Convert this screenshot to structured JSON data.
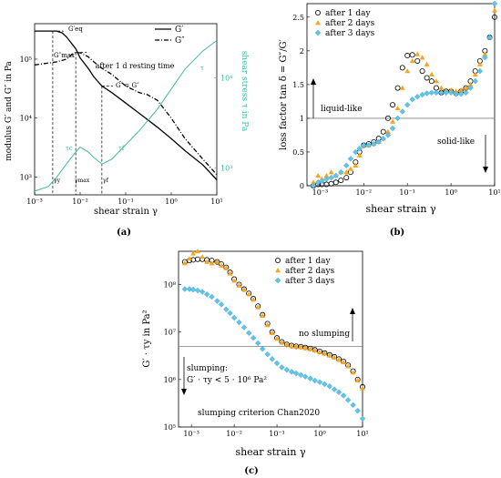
{
  "colors": {
    "teal": "#3fb8a3",
    "orange": "#f5a623",
    "lightblue": "#5fc3ea",
    "black": "#000000",
    "gray": "#7f7f7f"
  },
  "panels": {
    "a": {
      "caption": "(a)",
      "xlabel": "shear strain γ",
      "ylabel_left": "modulus G′ and G″ in Pa",
      "ylabel_right": "shear stress τ in Pa",
      "annotation_title": "after 1 d resting time",
      "legend": [
        {
          "label": "G′",
          "style": "solid"
        },
        {
          "label": "G″",
          "style": "dashdot"
        }
      ],
      "x_ticks": [
        "10⁻³",
        "10⁻²",
        "10⁻¹",
        "10⁰",
        "10¹"
      ],
      "y_ticks_left": [
        "10³",
        "10⁴",
        "10⁵"
      ],
      "y_ticks_right": [
        "10³",
        "10⁴"
      ],
      "annotations": {
        "g_eq": "G′eq",
        "g_max": "G″max",
        "cross": "G′ = G″",
        "tau": "τ",
        "tau_c": "τc",
        "tau_f": "τf",
        "gamma_y": "γy",
        "gamma_max": "γmax",
        "gamma_f": "γf"
      }
    },
    "b": {
      "caption": "(b)",
      "xlabel": "shear strain γ",
      "ylabel": "loss factor tan δ = G″/G′",
      "region_upper": "liquid-like",
      "region_lower": "solid-like",
      "x_ticks": [
        "10⁻³",
        "10⁻²",
        "10⁻¹",
        "10⁰",
        "10¹"
      ],
      "y_ticks": [
        "0",
        "0.5",
        "1",
        "1.5",
        "2",
        "2.5"
      ]
    },
    "c": {
      "caption": "(c)",
      "xlabel": "shear strain γ",
      "ylabel": "G′ · τy in Pa²",
      "region_upper": "no slumping",
      "slump_line1": "slumping:",
      "slump_line2": "G′ · τy < 5 · 10⁶ Pa²",
      "criterion": "slumping criterion Chan2020",
      "x_ticks": [
        "10⁻³",
        "10⁻²",
        "10⁻¹",
        "10⁰",
        "10¹"
      ],
      "y_ticks": [
        "10⁵",
        "10⁶",
        "10⁷",
        "10⁸"
      ]
    }
  },
  "chart_data": [
    {
      "type": "line",
      "xscale": "log",
      "yscale": "log",
      "xlim": [
        0.001,
        10
      ],
      "ylim": [
        500,
        400000
      ],
      "y2lim": [
        500,
        40000
      ],
      "grid": false,
      "legend_position": "top-right",
      "series": [
        {
          "name": "G′",
          "axis": "left",
          "x": [
            0.001,
            0.002,
            0.003,
            0.004,
            0.005,
            0.006,
            0.008,
            0.01,
            0.015,
            0.02,
            0.03,
            0.05,
            0.1,
            0.2,
            0.5,
            1,
            2,
            5,
            10
          ],
          "y": [
            300000,
            300000,
            300000,
            280000,
            240000,
            200000,
            150000,
            105000,
            70000,
            50000,
            35000,
            27000,
            18000,
            12000,
            7000,
            4500,
            2800,
            1600,
            900
          ]
        },
        {
          "name": "G″",
          "axis": "left",
          "x": [
            0.001,
            0.003,
            0.005,
            0.007,
            0.008,
            0.01,
            0.015,
            0.02,
            0.03,
            0.05,
            0.1,
            0.2,
            0.3,
            0.5,
            1,
            2,
            5,
            10
          ],
          "y": [
            80000,
            90000,
            100000,
            125000,
            130000,
            128000,
            110000,
            90000,
            70000,
            55000,
            35000,
            27000,
            25000,
            20000,
            10000,
            4500,
            2000,
            1100
          ]
        },
        {
          "name": "τ",
          "axis": "right",
          "x": [
            0.001,
            0.002,
            0.003,
            0.005,
            0.008,
            0.01,
            0.015,
            0.02,
            0.03,
            0.05,
            0.1,
            0.2,
            0.5,
            1,
            2,
            5,
            10
          ],
          "y": [
            550,
            620,
            780,
            1100,
            1500,
            1700,
            1500,
            1300,
            1100,
            1250,
            1800,
            2600,
            4500,
            7500,
            12500,
            20000,
            26000
          ]
        }
      ]
    },
    {
      "type": "scatter",
      "xscale": "log",
      "xlim": [
        0.0005,
        10
      ],
      "ylim": [
        0,
        2.7
      ],
      "reference_line": 1,
      "legend_position": "top-left",
      "series": [
        {
          "name": "after 1 day",
          "marker": "circle",
          "x": [
            0.0007,
            0.0009,
            0.0011,
            0.0014,
            0.0018,
            0.0023,
            0.003,
            0.004,
            0.005,
            0.0065,
            0.008,
            0.01,
            0.013,
            0.017,
            0.022,
            0.028,
            0.036,
            0.046,
            0.06,
            0.077,
            0.1,
            0.13,
            0.17,
            0.22,
            0.28,
            0.36,
            0.46,
            0.6,
            0.77,
            1,
            1.3,
            1.7,
            2.2,
            2.8,
            3.6,
            4.6,
            6,
            7.7,
            10
          ],
          "y": [
            0.0,
            0.02,
            0.02,
            0.02,
            0.03,
            0.05,
            0.08,
            0.12,
            0.2,
            0.35,
            0.5,
            0.6,
            0.62,
            0.65,
            0.7,
            0.8,
            1.0,
            1.2,
            1.45,
            1.75,
            1.93,
            1.94,
            1.85,
            1.7,
            1.6,
            1.55,
            1.45,
            1.38,
            1.4,
            1.4,
            1.37,
            1.4,
            1.45,
            1.55,
            1.7,
            1.85,
            2.0,
            2.2,
            2.5
          ]
        },
        {
          "name": "after 2 days",
          "marker": "triangle",
          "x": [
            0.0007,
            0.0009,
            0.0011,
            0.0014,
            0.0018,
            0.0023,
            0.003,
            0.004,
            0.005,
            0.0065,
            0.008,
            0.01,
            0.013,
            0.017,
            0.022,
            0.028,
            0.036,
            0.046,
            0.06,
            0.077,
            0.1,
            0.13,
            0.17,
            0.22,
            0.28,
            0.36,
            0.46,
            0.6,
            0.77,
            1,
            1.3,
            1.7,
            2.2,
            2.8,
            3.6,
            4.6,
            6,
            7.7,
            10
          ],
          "y": [
            0.05,
            0.15,
            0.1,
            0.15,
            0.2,
            0.15,
            0.2,
            0.2,
            0.25,
            0.3,
            0.45,
            0.6,
            0.6,
            0.62,
            0.65,
            0.7,
            0.8,
            0.95,
            1.15,
            1.45,
            1.7,
            1.85,
            1.95,
            1.9,
            1.8,
            1.65,
            1.55,
            1.45,
            1.4,
            1.42,
            1.4,
            1.42,
            1.45,
            1.5,
            1.65,
            1.8,
            1.95,
            2.2,
            2.6
          ]
        },
        {
          "name": "after 3 days",
          "marker": "diamond",
          "x": [
            0.0007,
            0.0009,
            0.0011,
            0.0014,
            0.0018,
            0.0023,
            0.003,
            0.004,
            0.005,
            0.0065,
            0.008,
            0.01,
            0.013,
            0.017,
            0.022,
            0.028,
            0.036,
            0.046,
            0.06,
            0.077,
            0.1,
            0.13,
            0.17,
            0.22,
            0.28,
            0.36,
            0.46,
            0.6,
            0.77,
            1,
            1.3,
            1.7,
            2.2,
            2.8,
            3.6,
            4.6,
            6,
            7.7,
            10
          ],
          "y": [
            0.0,
            0.05,
            0.07,
            0.1,
            0.12,
            0.15,
            0.2,
            0.3,
            0.4,
            0.5,
            0.55,
            0.6,
            0.6,
            0.62,
            0.65,
            0.7,
            0.75,
            0.85,
            1.0,
            1.1,
            1.2,
            1.28,
            1.32,
            1.35,
            1.37,
            1.38,
            1.38,
            1.38,
            1.38,
            1.38,
            1.36,
            1.36,
            1.38,
            1.45,
            1.55,
            1.7,
            1.9,
            2.2,
            2.7
          ]
        }
      ]
    },
    {
      "type": "scatter",
      "xscale": "log",
      "yscale": "log",
      "xlim": [
        0.0005,
        10
      ],
      "ylim": [
        100000,
        500000000
      ],
      "reference_line": 5000000,
      "legend_position": "top-right",
      "series": [
        {
          "name": "after 1 day",
          "marker": "circle",
          "x": [
            0.0007,
            0.0009,
            0.0011,
            0.0014,
            0.0018,
            0.0023,
            0.003,
            0.004,
            0.005,
            0.0065,
            0.008,
            0.01,
            0.013,
            0.017,
            0.022,
            0.028,
            0.036,
            0.046,
            0.06,
            0.077,
            0.1,
            0.13,
            0.17,
            0.22,
            0.28,
            0.36,
            0.46,
            0.6,
            0.77,
            1,
            1.3,
            1.7,
            2.2,
            2.8,
            3.6,
            4.6,
            6,
            7.7,
            10
          ],
          "y": [
            300000000,
            320000000,
            330000000,
            340000000,
            340000000,
            330000000,
            320000000,
            300000000,
            270000000,
            230000000,
            180000000,
            130000000,
            100000000,
            80000000,
            65000000,
            50000000,
            35000000,
            23000000,
            15000000,
            10000000,
            7500000,
            6200000,
            5500000,
            5200000,
            5000000,
            4900000,
            4700000,
            4500000,
            4200000,
            3900000,
            3600000,
            3300000,
            3000000,
            2700000,
            2400000,
            2000000,
            1500000,
            1000000,
            700000
          ]
        },
        {
          "name": "after 2 days",
          "marker": "triangle",
          "x": [
            0.0007,
            0.0009,
            0.0011,
            0.0014,
            0.0018,
            0.0023,
            0.003,
            0.004,
            0.005,
            0.0065,
            0.008,
            0.01,
            0.013,
            0.017,
            0.022,
            0.028,
            0.036,
            0.046,
            0.06,
            0.077,
            0.1,
            0.13,
            0.17,
            0.22,
            0.28,
            0.36,
            0.46,
            0.6,
            0.77,
            1,
            1.3,
            1.7,
            2.2,
            2.8,
            3.6,
            4.6,
            6,
            7.7,
            10
          ],
          "y": [
            280000000,
            350000000,
            450000000,
            500000000,
            380000000,
            300000000,
            280000000,
            300000000,
            250000000,
            220000000,
            170000000,
            120000000,
            95000000,
            78000000,
            62000000,
            48000000,
            33000000,
            22000000,
            14000000,
            9500000,
            7200000,
            6000000,
            5400000,
            5100000,
            4900000,
            4800000,
            4600000,
            4400000,
            4100000,
            3800000,
            3500000,
            3200000,
            2900000,
            2600000,
            2300000,
            1900000,
            1400000,
            950000,
            650000
          ]
        },
        {
          "name": "after 3 days",
          "marker": "diamond",
          "x": [
            0.0007,
            0.0009,
            0.0011,
            0.0014,
            0.0018,
            0.0023,
            0.003,
            0.004,
            0.005,
            0.0065,
            0.008,
            0.01,
            0.013,
            0.017,
            0.022,
            0.028,
            0.036,
            0.046,
            0.06,
            0.077,
            0.1,
            0.13,
            0.17,
            0.22,
            0.28,
            0.36,
            0.46,
            0.6,
            0.77,
            1,
            1.3,
            1.7,
            2.2,
            2.8,
            3.6,
            4.6,
            6,
            7.7,
            10
          ],
          "y": [
            80000000,
            80000000,
            78000000,
            75000000,
            70000000,
            62000000,
            55000000,
            45000000,
            38000000,
            30000000,
            25000000,
            20000000,
            16000000,
            12500000,
            9500000,
            7500000,
            5800000,
            4400000,
            3400000,
            2700000,
            2200000,
            1800000,
            1600000,
            1450000,
            1350000,
            1250000,
            1150000,
            1050000,
            950000,
            880000,
            800000,
            720000,
            620000,
            540000,
            460000,
            370000,
            290000,
            220000,
            150000
          ]
        }
      ]
    }
  ]
}
